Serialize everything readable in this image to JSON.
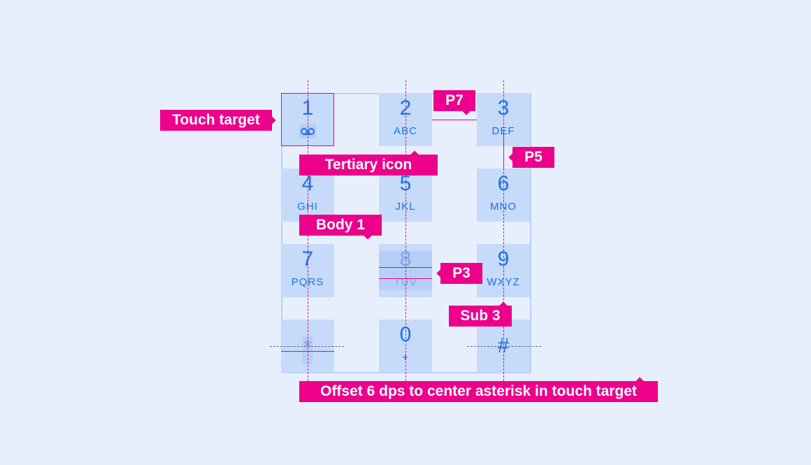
{
  "keys": [
    {
      "digit": "1",
      "letters": ""
    },
    {
      "digit": "2",
      "letters": "ABC"
    },
    {
      "digit": "3",
      "letters": "DEF"
    },
    {
      "digit": "4",
      "letters": "GHI"
    },
    {
      "digit": "5",
      "letters": "JKL"
    },
    {
      "digit": "6",
      "letters": "MNO"
    },
    {
      "digit": "7",
      "letters": "PQRS"
    },
    {
      "digit": "8",
      "letters": "TUV"
    },
    {
      "digit": "9",
      "letters": "WXYZ"
    },
    {
      "digit": "*",
      "letters": ""
    },
    {
      "digit": "0",
      "letters": "+"
    },
    {
      "digit": "#",
      "letters": ""
    }
  ],
  "annotations": {
    "touch_target": "Touch target",
    "tertiary_icon": "Tertiary icon",
    "p7": "P7",
    "p5": "P5",
    "body1": "Body 1",
    "p3": "P3",
    "sub3": "Sub 3",
    "offset": "Offset 6 dps to center asterisk in touch target"
  },
  "colors": {
    "accent": "#ec008c",
    "key_bg": "#c6daf9",
    "text": "#1a73e8"
  }
}
